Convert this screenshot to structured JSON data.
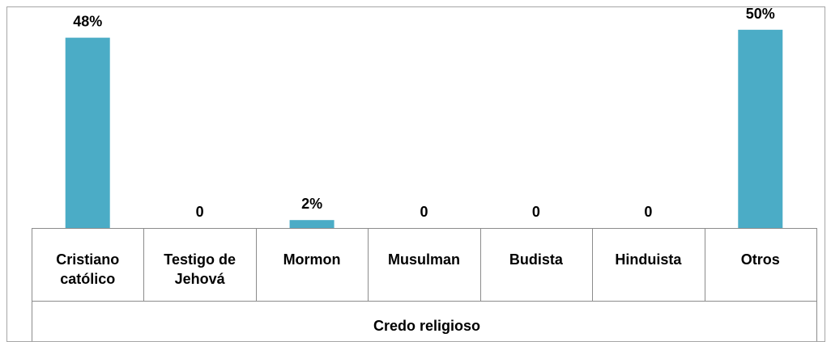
{
  "chart_data": {
    "type": "bar",
    "categories": [
      [
        "Cristiano",
        "católico"
      ],
      [
        "Testigo de",
        "Jehová"
      ],
      [
        "Mormon"
      ],
      [
        "Musulman"
      ],
      [
        "Budista"
      ],
      [
        "Hinduista"
      ],
      [
        "Otros"
      ]
    ],
    "values": [
      48,
      0,
      2,
      0,
      0,
      0,
      50
    ],
    "data_labels": [
      "48%",
      "0",
      "2%",
      "0",
      "0",
      "0",
      "50%"
    ],
    "xlabel": "Credo religioso",
    "ylabel": "",
    "ylim": [
      0,
      52
    ],
    "grid": false,
    "legend": "none",
    "colors": {
      "bar": "#4BACC6",
      "axis": "#8C8C8C",
      "frame": "#A6A6A6",
      "text": "#000000"
    }
  }
}
